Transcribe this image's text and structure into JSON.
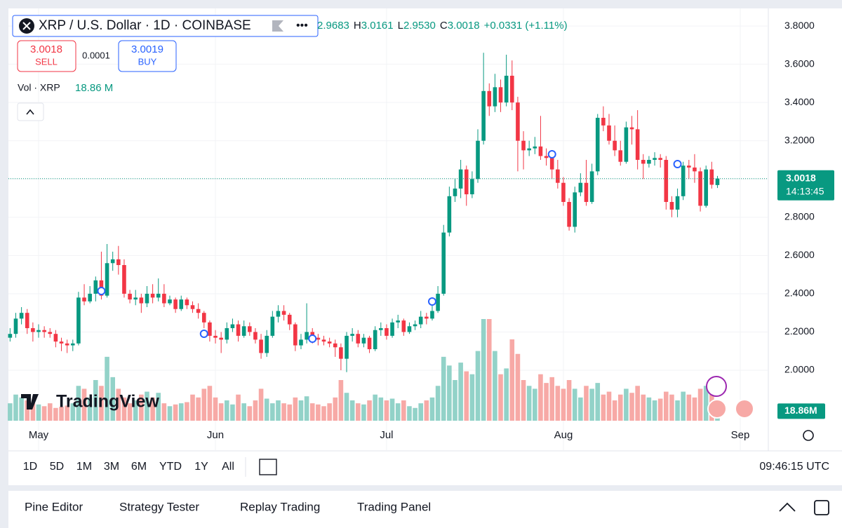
{
  "chart_data": {
    "type": "candlestick",
    "title": "XRP / U.S. Dollar · 1D · COINBASE",
    "open_text": "2.9683",
    "ohlc": [
      {
        "label": "H",
        "value": "3.0161"
      },
      {
        "label": "L",
        "value": "2.9530"
      },
      {
        "label": "C",
        "value": "3.0018"
      }
    ],
    "change": "+0.0331 (+1.11%)",
    "up_color": "#089981",
    "down_color": "#f23645",
    "volume_up_color": "#92d2c8",
    "volume_down_color": "#f7a9a6",
    "open": [
      2.17,
      2.19,
      2.27,
      2.3,
      2.22,
      2.2,
      2.21,
      2.2,
      2.19,
      2.15,
      2.14,
      2.13,
      2.14,
      2.38,
      2.36,
      2.4,
      2.47,
      2.39,
      2.56,
      2.58,
      2.55,
      2.4,
      2.37,
      2.38,
      2.35,
      2.4,
      2.38,
      2.4,
      2.35,
      2.37,
      2.32,
      2.37,
      2.34,
      2.32,
      2.3,
      2.25,
      2.18,
      2.17,
      2.16,
      2.22,
      2.24,
      2.18,
      2.23,
      2.2,
      2.16,
      2.09,
      2.18,
      2.28,
      2.31,
      2.29,
      2.24,
      2.13,
      2.16,
      2.2,
      2.17,
      2.16,
      2.15,
      2.14,
      2.12,
      2.06,
      2.18,
      2.19,
      2.14,
      2.17,
      2.11,
      2.21,
      2.22,
      2.18,
      2.25,
      2.26,
      2.2,
      2.23,
      2.24,
      2.28,
      2.27,
      2.31,
      2.4,
      2.72,
      2.91,
      2.95,
      3.05,
      2.92,
      3.0,
      3.2,
      3.46,
      3.38,
      3.48,
      3.4,
      3.54,
      3.4,
      3.2,
      3.15,
      3.16,
      3.17,
      3.12,
      3.11,
      3.05,
      2.98,
      2.88,
      2.75,
      2.93,
      2.98,
      2.88,
      3.04,
      3.32,
      3.28,
      3.2,
      3.15,
      3.09,
      3.27,
      3.26,
      3.1,
      3.08,
      3.1,
      3.11,
      3.1,
      2.88,
      2.84,
      2.91,
      3.07,
      3.06,
      3.04,
      2.86,
      3.05,
      2.9683
    ],
    "high": [
      2.22,
      2.3,
      2.33,
      2.32,
      2.25,
      2.24,
      2.23,
      2.22,
      2.21,
      2.17,
      2.16,
      2.16,
      2.41,
      2.45,
      2.44,
      2.49,
      2.62,
      2.66,
      2.62,
      2.65,
      2.58,
      2.42,
      2.42,
      2.4,
      2.44,
      2.45,
      2.48,
      2.45,
      2.39,
      2.38,
      2.39,
      2.38,
      2.36,
      2.35,
      2.31,
      2.26,
      2.21,
      2.2,
      2.25,
      2.27,
      2.26,
      2.26,
      2.25,
      2.22,
      2.19,
      2.21,
      2.31,
      2.34,
      2.34,
      2.3,
      2.25,
      2.19,
      2.35,
      2.22,
      2.19,
      2.18,
      2.17,
      2.16,
      2.14,
      2.2,
      2.22,
      2.21,
      2.19,
      2.18,
      2.23,
      2.25,
      2.24,
      2.27,
      2.29,
      2.27,
      2.25,
      2.26,
      2.31,
      2.3,
      2.38,
      2.44,
      2.76,
      2.96,
      3.0,
      3.1,
      3.07,
      3.04,
      3.26,
      3.66,
      3.5,
      3.55,
      3.52,
      3.65,
      3.62,
      3.43,
      3.25,
      3.2,
      3.22,
      3.33,
      3.16,
      3.15,
      3.1,
      3.01,
      2.9,
      2.96,
      3.03,
      3.1,
      3.08,
      3.34,
      3.38,
      3.34,
      3.28,
      3.2,
      3.3,
      3.33,
      3.36,
      3.13,
      3.12,
      3.14,
      3.13,
      3.12,
      2.91,
      2.95,
      3.09,
      3.1,
      3.13,
      3.06,
      3.07,
      3.09,
      3.0161
    ],
    "low": [
      2.15,
      2.17,
      2.24,
      2.19,
      2.15,
      2.17,
      2.17,
      2.17,
      2.12,
      2.1,
      2.09,
      2.1,
      2.13,
      2.34,
      2.35,
      2.36,
      2.37,
      2.38,
      2.52,
      2.5,
      2.38,
      2.35,
      2.34,
      2.3,
      2.33,
      2.35,
      2.36,
      2.33,
      2.34,
      2.3,
      2.31,
      2.32,
      2.3,
      2.27,
      2.22,
      2.15,
      2.14,
      2.09,
      2.14,
      2.2,
      2.15,
      2.17,
      2.18,
      2.14,
      2.06,
      2.07,
      2.17,
      2.25,
      2.26,
      2.21,
      2.1,
      2.11,
      2.14,
      2.14,
      2.13,
      2.13,
      2.12,
      2.07,
      2.0,
      1.99,
      2.15,
      2.12,
      2.12,
      2.09,
      2.1,
      2.18,
      2.16,
      2.17,
      2.22,
      2.18,
      2.19,
      2.21,
      2.22,
      2.24,
      2.26,
      2.3,
      2.39,
      2.7,
      2.88,
      2.9,
      2.86,
      2.9,
      2.98,
      3.18,
      3.33,
      3.35,
      3.35,
      3.38,
      3.36,
      3.04,
      3.05,
      3.12,
      3.13,
      3.1,
      3.07,
      3.0,
      2.95,
      2.86,
      2.73,
      2.72,
      2.91,
      2.86,
      2.87,
      3.02,
      3.25,
      3.18,
      3.12,
      3.07,
      3.08,
      3.18,
      3.05,
      3.0,
      3.06,
      3.07,
      3.06,
      2.84,
      2.8,
      2.8,
      2.89,
      3.0,
      2.98,
      2.83,
      2.85,
      2.95,
      2.953
    ],
    "close": [
      2.19,
      2.27,
      2.3,
      2.22,
      2.2,
      2.21,
      2.2,
      2.19,
      2.15,
      2.14,
      2.13,
      2.14,
      2.38,
      2.36,
      2.4,
      2.47,
      2.39,
      2.56,
      2.58,
      2.55,
      2.4,
      2.37,
      2.38,
      2.35,
      2.4,
      2.38,
      2.4,
      2.35,
      2.37,
      2.32,
      2.37,
      2.34,
      2.32,
      2.3,
      2.25,
      2.18,
      2.17,
      2.16,
      2.22,
      2.24,
      2.18,
      2.23,
      2.2,
      2.16,
      2.09,
      2.18,
      2.28,
      2.31,
      2.29,
      2.24,
      2.13,
      2.16,
      2.2,
      2.17,
      2.16,
      2.15,
      2.14,
      2.12,
      2.06,
      2.18,
      2.19,
      2.14,
      2.17,
      2.11,
      2.21,
      2.22,
      2.18,
      2.25,
      2.26,
      2.2,
      2.23,
      2.24,
      2.28,
      2.27,
      2.31,
      2.4,
      2.72,
      2.91,
      2.95,
      3.05,
      2.92,
      3.0,
      3.2,
      3.46,
      3.38,
      3.48,
      3.4,
      3.54,
      3.4,
      3.2,
      3.15,
      3.16,
      3.17,
      3.12,
      3.11,
      3.05,
      2.98,
      2.88,
      2.75,
      2.93,
      2.98,
      2.88,
      3.04,
      3.32,
      3.28,
      3.2,
      3.15,
      3.09,
      3.27,
      3.26,
      3.1,
      3.08,
      3.1,
      3.11,
      3.1,
      2.88,
      2.84,
      2.91,
      3.07,
      3.06,
      3.04,
      2.86,
      3.05,
      2.97,
      3.0018
    ],
    "volume": {
      "name": "Vol · XRP",
      "legend_value": "18.86 M",
      "current_label": "18.86M",
      "values": [
        30,
        45,
        40,
        35,
        30,
        28,
        25,
        30,
        22,
        24,
        26,
        30,
        60,
        55,
        40,
        70,
        60,
        110,
        75,
        55,
        40,
        30,
        35,
        45,
        50,
        40,
        48,
        30,
        25,
        28,
        30,
        32,
        45,
        40,
        55,
        60,
        40,
        30,
        35,
        28,
        45,
        30,
        25,
        35,
        55,
        38,
        30,
        35,
        30,
        28,
        40,
        35,
        42,
        30,
        28,
        25,
        30,
        40,
        70,
        48,
        35,
        30,
        28,
        35,
        45,
        40,
        35,
        38,
        30,
        35,
        25,
        22,
        30,
        35,
        40,
        60,
        110,
        95,
        70,
        100,
        85,
        80,
        120,
        175,
        175,
        120,
        80,
        90,
        140,
        115,
        70,
        60,
        55,
        80,
        65,
        75,
        60,
        55,
        70,
        55,
        40,
        60,
        55,
        65,
        45,
        50,
        35,
        45,
        55,
        48,
        60,
        45,
        40,
        35,
        38,
        50,
        45,
        35,
        50,
        45,
        40,
        55,
        60,
        50,
        18.86
      ]
    },
    "ylim": [
      1.736,
      3.892
    ],
    "yticks": [
      {
        "value": 2,
        "label": "2.0000"
      },
      {
        "value": 2.2,
        "label": "2.2000"
      },
      {
        "value": 2.4,
        "label": "2.4000"
      },
      {
        "value": 2.6,
        "label": "2.6000"
      },
      {
        "value": 2.8,
        "label": "2.8000"
      },
      {
        "value": 3,
        "label": "3.0000"
      },
      {
        "value": 3.2,
        "label": "3.2000"
      },
      {
        "value": 3.4,
        "label": "3.4000"
      },
      {
        "value": 3.6,
        "label": "3.6000"
      },
      {
        "value": 3.8,
        "label": "3.8000"
      }
    ],
    "xticks": [
      {
        "value": 5,
        "label": "May"
      },
      {
        "value": 36,
        "label": "Jun"
      },
      {
        "value": 66,
        "label": "Jul"
      },
      {
        "value": 97,
        "label": "Aug"
      },
      {
        "value": 128,
        "label": "Sep"
      }
    ],
    "grid": true,
    "last_price_label": "3.0018",
    "countdown": "14:13:45"
  },
  "trade": {
    "sell_price": "3.0018",
    "sell": "SELL",
    "spread": "0.0001",
    "buy_price": "3.0019",
    "buy": "BUY"
  },
  "logo": "TradingView",
  "toolbar": {
    "ranges": [
      "1D",
      "5D",
      "1M",
      "3M",
      "6M",
      "YTD",
      "1Y",
      "All"
    ],
    "time": "09:46:15 UTC"
  },
  "tabs": [
    "Pine Editor",
    "Strategy Tester",
    "Replay Trading",
    "Trading Panel"
  ]
}
